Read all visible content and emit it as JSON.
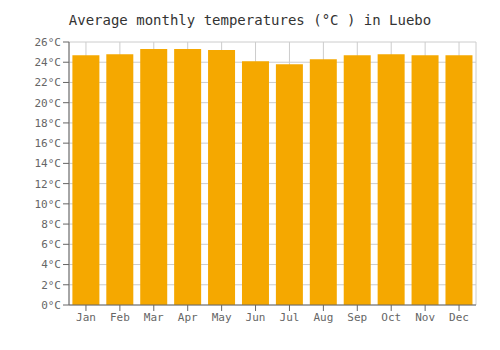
{
  "chart_data": {
    "type": "bar",
    "title": "Average monthly temperatures (°C ) in Luebo",
    "categories": [
      "Jan",
      "Feb",
      "Mar",
      "Apr",
      "May",
      "Jun",
      "Jul",
      "Aug",
      "Sep",
      "Oct",
      "Nov",
      "Dec"
    ],
    "values": [
      24.7,
      24.8,
      25.3,
      25.3,
      25.2,
      24.1,
      23.8,
      24.3,
      24.7,
      24.8,
      24.7,
      24.7
    ],
    "color": "#F5A800",
    "ylim": [
      0,
      26
    ],
    "yticks": [
      {
        "value": 0,
        "label": "0°C"
      },
      {
        "value": 2,
        "label": "2°C"
      },
      {
        "value": 4,
        "label": "4°C"
      },
      {
        "value": 6,
        "label": "6°C"
      },
      {
        "value": 8,
        "label": "8°C"
      },
      {
        "value": 10,
        "label": "10°C"
      },
      {
        "value": 12,
        "label": "12°C"
      },
      {
        "value": 14,
        "label": "14°C"
      },
      {
        "value": 16,
        "label": "16°C"
      },
      {
        "value": 18,
        "label": "18°C"
      },
      {
        "value": 20,
        "label": "20°C"
      },
      {
        "value": 22,
        "label": "22°C"
      },
      {
        "value": 24,
        "label": "24°C"
      },
      {
        "value": 26,
        "label": "26°C"
      }
    ],
    "grid": true
  }
}
